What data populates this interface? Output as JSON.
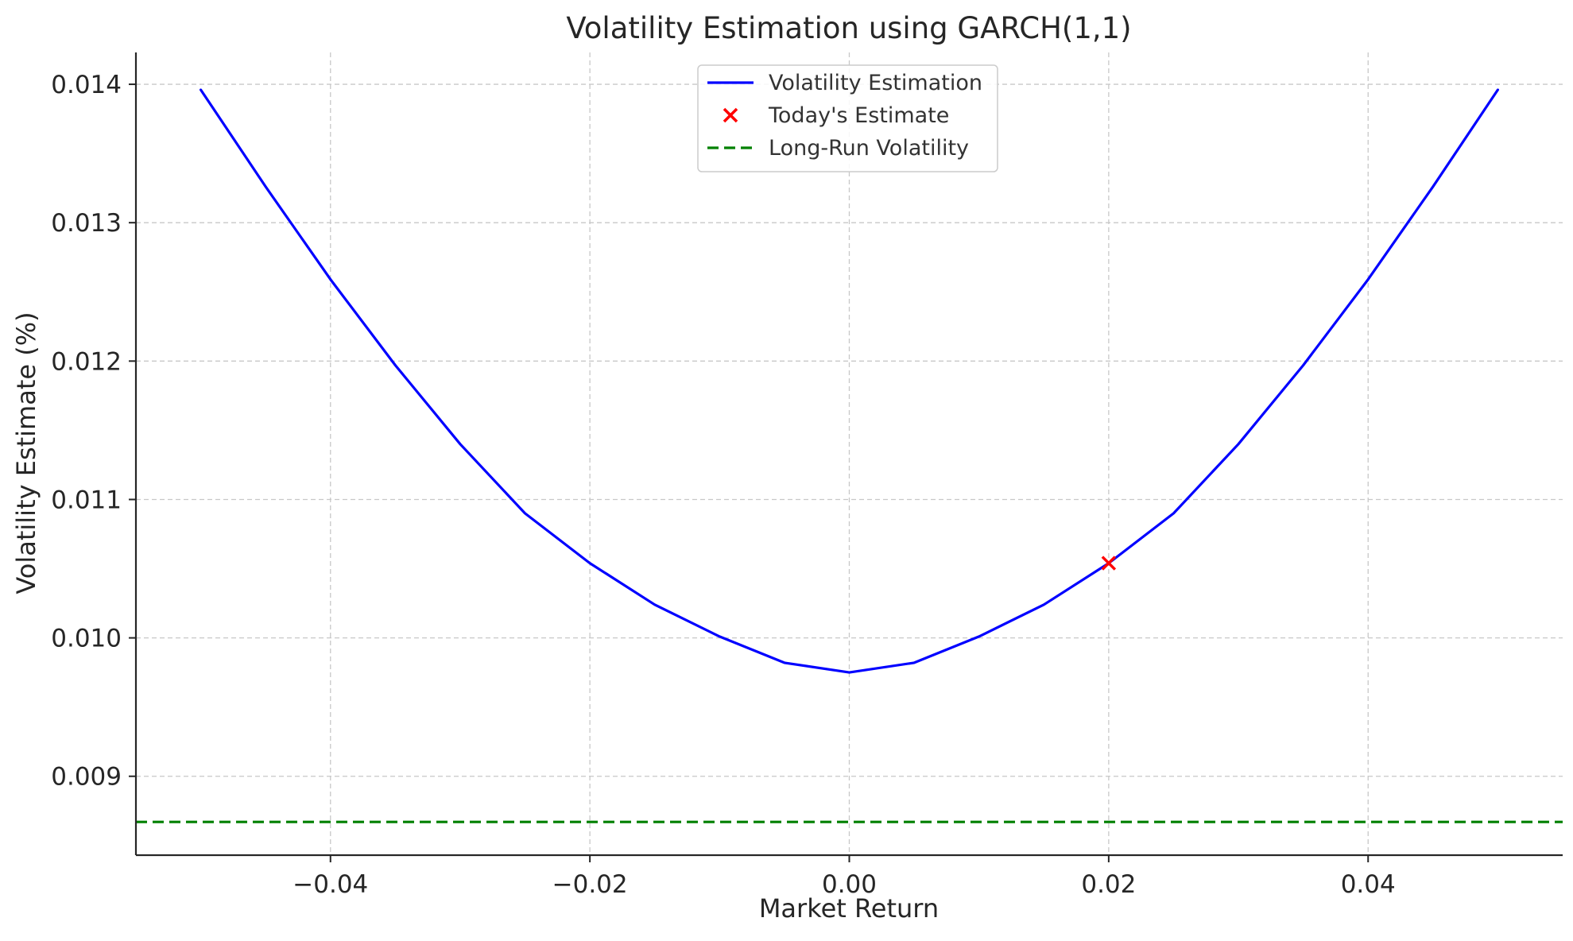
{
  "chart_data": {
    "type": "line",
    "title": "Volatility Estimation using GARCH(1,1)",
    "xlabel": "Market Return",
    "ylabel": "Volatility Estimate (%)",
    "xlim": [
      -0.055,
      0.055
    ],
    "ylim": [
      0.00843,
      0.01423
    ],
    "xticks": [
      -0.04,
      -0.02,
      0.0,
      0.02,
      0.04
    ],
    "xtick_labels": [
      "−0.04",
      "−0.02",
      "0.00",
      "0.02",
      "0.04"
    ],
    "yticks": [
      0.009,
      0.01,
      0.011,
      0.012,
      0.013,
      0.014
    ],
    "ytick_labels": [
      "0.009",
      "0.010",
      "0.011",
      "0.012",
      "0.013",
      "0.014"
    ],
    "grid": true,
    "legend_position": "top-center",
    "series": [
      {
        "name": "Volatility Estimation",
        "kind": "line",
        "color": "#0000ff",
        "x": [
          -0.05,
          -0.045,
          -0.04,
          -0.035,
          -0.03,
          -0.025,
          -0.02,
          -0.015,
          -0.01,
          -0.005,
          0.0,
          0.005,
          0.01,
          0.015,
          0.02,
          0.025,
          0.03,
          0.035,
          0.04,
          0.045,
          0.05
        ],
        "y": [
          0.01396,
          0.01326,
          0.01259,
          0.01197,
          0.0114,
          0.0109,
          0.01054,
          0.01024,
          0.01001,
          0.00982,
          0.00975,
          0.00982,
          0.01001,
          0.01024,
          0.01054,
          0.0109,
          0.0114,
          0.01197,
          0.01259,
          0.01326,
          0.01396
        ]
      },
      {
        "name": "Today's Estimate",
        "kind": "marker",
        "marker": "x",
        "color": "#ff0000",
        "x": [
          0.02
        ],
        "y": [
          0.01054
        ]
      },
      {
        "name": "Long-Run Volatility",
        "kind": "hline",
        "style": "dashed",
        "color": "#008000",
        "y": 0.00867
      }
    ]
  }
}
